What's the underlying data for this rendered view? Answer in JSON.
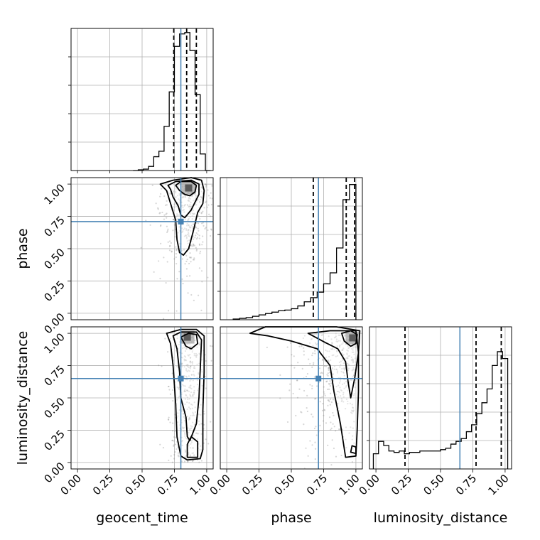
{
  "chart_data": {
    "type": "corner",
    "parameters": [
      "geocent_time",
      "phase",
      "luminosity_distance"
    ],
    "tick_labels": [
      "0.00",
      "0.25",
      "0.50",
      "0.75",
      "1.00"
    ],
    "ticks": [
      0,
      0.25,
      0.5,
      0.75,
      1.0
    ],
    "axis_range": [
      -0.05,
      1.05
    ],
    "grid": true,
    "colors": {
      "truth": "#4682b4",
      "hist": "#000000",
      "quantile": "#000000",
      "contour": "#000000",
      "grid": "#b0b0b0",
      "scatter": "#8c8c8c"
    },
    "truths": {
      "geocent_time": 0.8,
      "phase": 0.71,
      "luminosity_distance": 0.65
    },
    "quantiles": {
      "geocent_time": [
        0.745,
        0.845,
        0.92
      ],
      "phase": [
        0.67,
        0.925,
        0.99
      ],
      "luminosity_distance": [
        0.225,
        0.775,
        0.97
      ]
    },
    "histograms": {
      "geocent_time": {
        "bin_edges": [
          0.43,
          0.47,
          0.51,
          0.55,
          0.59,
          0.63,
          0.67,
          0.71,
          0.75,
          0.79,
          0.83,
          0.87,
          0.91,
          0.95,
          0.99,
          1.03
        ],
        "counts": [
          0.0,
          0.005,
          0.01,
          0.03,
          0.1,
          0.14,
          0.32,
          0.57,
          0.9,
          0.99,
          1.0,
          0.87,
          0.55,
          0.12,
          0.0
        ],
        "ymax": 1.0
      },
      "phase": {
        "bin_edges": [
          0.05,
          0.1,
          0.15,
          0.2,
          0.25,
          0.3,
          0.35,
          0.4,
          0.45,
          0.5,
          0.55,
          0.6,
          0.65,
          0.7,
          0.75,
          0.8,
          0.85,
          0.9,
          0.95,
          1.0
        ],
        "counts": [
          0.005,
          0.01,
          0.015,
          0.025,
          0.035,
          0.045,
          0.055,
          0.065,
          0.07,
          0.08,
          0.1,
          0.13,
          0.16,
          0.2,
          0.26,
          0.34,
          0.52,
          0.87,
          0.98
        ],
        "ymax": 1.0
      },
      "luminosity_distance": {
        "bin_edges": [
          -0.02,
          0.02,
          0.06,
          0.1,
          0.14,
          0.18,
          0.22,
          0.26,
          0.3,
          0.34,
          0.38,
          0.42,
          0.46,
          0.5,
          0.54,
          0.58,
          0.62,
          0.66,
          0.7,
          0.74,
          0.78,
          0.82,
          0.86,
          0.9,
          0.94,
          0.98,
          1.02
        ],
        "counts": [
          0.11,
          0.2,
          0.17,
          0.13,
          0.12,
          0.13,
          0.11,
          0.12,
          0.12,
          0.13,
          0.13,
          0.13,
          0.13,
          0.14,
          0.15,
          0.18,
          0.2,
          0.22,
          0.27,
          0.32,
          0.4,
          0.48,
          0.58,
          0.75,
          0.85,
          0.8
        ],
        "ymax": 1.0
      }
    },
    "densities": {
      "phase_vs_geocent_time": {
        "x_param": "geocent_time",
        "y_param": "phase",
        "core": [
          0.86,
          0.97
        ],
        "contour_levels": [
          [
            [
              0.64,
              1.0
            ],
            [
              0.74,
              1.03
            ],
            [
              0.88,
              1.05
            ],
            [
              0.96,
              1.03
            ],
            [
              0.98,
              0.95
            ],
            [
              0.97,
              0.85
            ],
            [
              0.93,
              0.78
            ],
            [
              0.9,
              0.65
            ],
            [
              0.86,
              0.5
            ],
            [
              0.82,
              0.45
            ],
            [
              0.79,
              0.47
            ],
            [
              0.77,
              0.57
            ],
            [
              0.76,
              0.72
            ],
            [
              0.72,
              0.85
            ],
            [
              0.69,
              0.95
            ]
          ],
          [
            [
              0.7,
              0.99
            ],
            [
              0.76,
              1.02
            ],
            [
              0.88,
              1.03
            ],
            [
              0.94,
              1.0
            ],
            [
              0.94,
              0.92
            ],
            [
              0.91,
              0.86
            ],
            [
              0.88,
              0.8
            ],
            [
              0.83,
              0.74
            ],
            [
              0.8,
              0.76
            ],
            [
              0.78,
              0.83
            ],
            [
              0.74,
              0.9
            ],
            [
              0.72,
              0.96
            ]
          ],
          [
            [
              0.76,
              0.99
            ],
            [
              0.8,
              1.02
            ],
            [
              0.88,
              1.02
            ],
            [
              0.92,
              0.99
            ],
            [
              0.91,
              0.94
            ],
            [
              0.87,
              0.91
            ],
            [
              0.83,
              0.92
            ],
            [
              0.79,
              0.95
            ]
          ]
        ]
      },
      "luminosity_distance_vs_geocent_time": {
        "x_param": "geocent_time",
        "y_param": "luminosity_distance",
        "core": [
          0.85,
          0.97
        ],
        "contour_levels": [
          [
            [
              0.69,
              1.0
            ],
            [
              0.8,
              1.03
            ],
            [
              0.92,
              1.03
            ],
            [
              0.98,
              0.98
            ],
            [
              0.98,
              0.7
            ],
            [
              0.97,
              0.4
            ],
            [
              0.97,
              0.1
            ],
            [
              0.95,
              0.03
            ],
            [
              0.85,
              0.02
            ],
            [
              0.8,
              0.05
            ],
            [
              0.77,
              0.2
            ],
            [
              0.76,
              0.45
            ],
            [
              0.74,
              0.75
            ],
            [
              0.72,
              0.92
            ]
          ],
          [
            [
              0.74,
              0.98
            ],
            [
              0.8,
              1.01
            ],
            [
              0.92,
              1.01
            ],
            [
              0.96,
              0.95
            ],
            [
              0.95,
              0.72
            ],
            [
              0.94,
              0.5
            ],
            [
              0.92,
              0.3
            ],
            [
              0.87,
              0.17
            ],
            [
              0.85,
              0.2
            ],
            [
              0.84,
              0.35
            ],
            [
              0.8,
              0.5
            ],
            [
              0.79,
              0.7
            ],
            [
              0.77,
              0.88
            ]
          ],
          [
            [
              0.8,
              0.97
            ],
            [
              0.86,
              1.0
            ],
            [
              0.92,
              0.99
            ],
            [
              0.93,
              0.92
            ],
            [
              0.88,
              0.88
            ],
            [
              0.84,
              0.9
            ]
          ],
          [
            [
              0.85,
              0.04
            ],
            [
              0.93,
              0.04
            ],
            [
              0.93,
              0.16
            ],
            [
              0.88,
              0.2
            ],
            [
              0.85,
              0.14
            ]
          ]
        ]
      },
      "luminosity_distance_vs_phase": {
        "x_param": "phase",
        "y_param": "luminosity_distance",
        "core": [
          0.975,
          0.965
        ],
        "contour_levels": [
          [
            [
              0.18,
              1.0
            ],
            [
              0.3,
              1.05
            ],
            [
              0.6,
              1.05
            ],
            [
              0.85,
              1.05
            ],
            [
              1.03,
              1.02
            ],
            [
              1.02,
              0.85
            ],
            [
              1.02,
              0.55
            ],
            [
              1.01,
              0.25
            ],
            [
              1.0,
              0.05
            ],
            [
              0.92,
              0.04
            ],
            [
              0.88,
              0.3
            ],
            [
              0.83,
              0.55
            ],
            [
              0.8,
              0.75
            ],
            [
              0.7,
              0.88
            ],
            [
              0.5,
              0.94
            ],
            [
              0.32,
              0.98
            ]
          ],
          [
            [
              0.63,
              1.0
            ],
            [
              0.8,
              1.02
            ],
            [
              1.0,
              1.02
            ],
            [
              1.02,
              0.85
            ],
            [
              0.99,
              0.65
            ],
            [
              0.96,
              0.5
            ],
            [
              0.94,
              0.62
            ],
            [
              0.92,
              0.78
            ],
            [
              0.86,
              0.88
            ],
            [
              0.76,
              0.93
            ]
          ],
          [
            [
              0.89,
              1.0
            ],
            [
              0.96,
              1.02
            ],
            [
              1.01,
              0.99
            ],
            [
              1.0,
              0.92
            ],
            [
              0.96,
              0.9
            ],
            [
              0.91,
              0.94
            ]
          ],
          [
            [
              0.96,
              0.08
            ],
            [
              1.0,
              0.07
            ],
            [
              1.0,
              0.12
            ],
            [
              0.97,
              0.13
            ]
          ]
        ]
      }
    }
  }
}
